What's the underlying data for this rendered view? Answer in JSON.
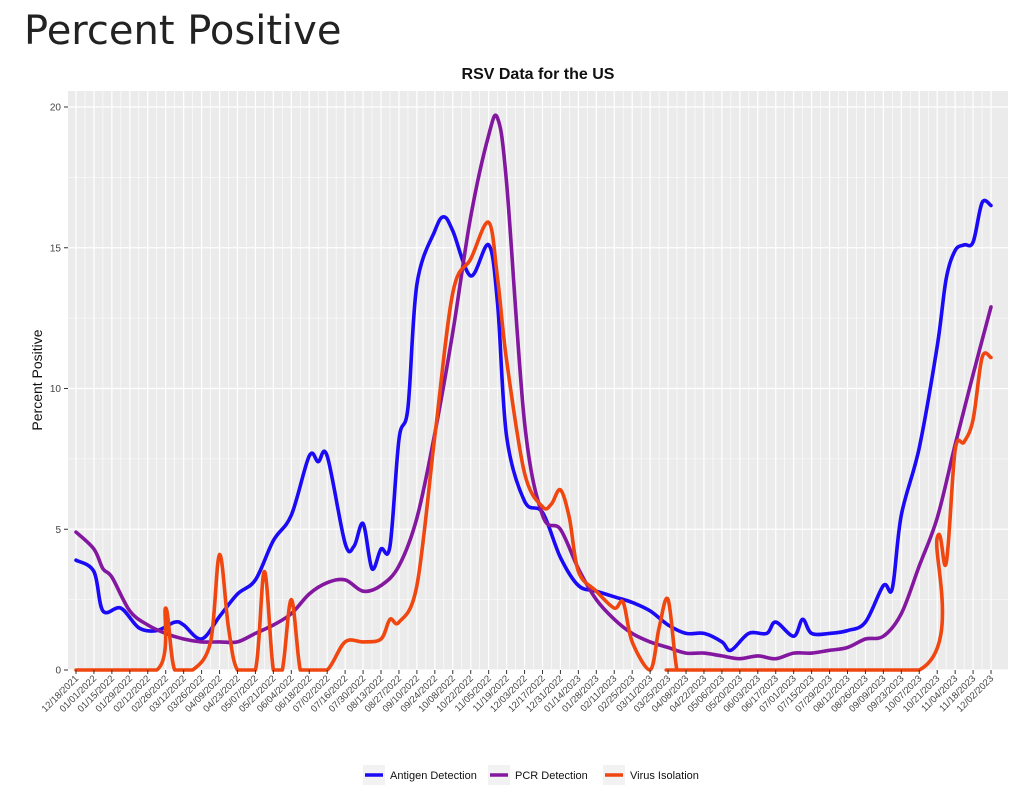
{
  "page": {
    "heading": "Percent Positive"
  },
  "chart_data": {
    "type": "line",
    "title": "RSV Data for the US",
    "xlabel": "",
    "ylabel": "Percent Positive",
    "ylim": [
      0,
      20
    ],
    "yticks": [
      0,
      5,
      10,
      15,
      20
    ],
    "x_start": "12/18/2021",
    "x_end": "12/09/2023",
    "x_tick_labels": [
      "12/18/2021",
      "01/01/2022",
      "01/15/2022",
      "01/29/2022",
      "02/12/2022",
      "02/26/2022",
      "03/12/2022",
      "03/26/2022",
      "04/09/2022",
      "04/23/2022",
      "05/07/2022",
      "05/21/2022",
      "06/04/2022",
      "06/18/2022",
      "07/02/2022",
      "07/16/2022",
      "07/30/2022",
      "08/13/2022",
      "08/27/2022",
      "09/10/2022",
      "09/24/2022",
      "10/08/2022",
      "10/22/2022",
      "11/05/2022",
      "11/19/2022",
      "12/03/2022",
      "12/17/2022",
      "12/31/2022",
      "01/14/2023",
      "01/28/2023",
      "02/11/2023",
      "02/25/2023",
      "03/11/2023",
      "03/25/2023",
      "04/08/2023",
      "04/22/2023",
      "05/06/2023",
      "05/20/2023",
      "06/03/2023",
      "06/17/2023",
      "07/01/2023",
      "07/15/2023",
      "07/29/2023",
      "08/12/2023",
      "08/26/2023",
      "09/09/2023",
      "09/23/2023",
      "10/07/2023",
      "10/21/2023",
      "11/04/2023",
      "11/18/2023",
      "12/02/2023"
    ],
    "grid": true,
    "legend_position": "bottom",
    "series": [
      {
        "name": "Antigen Detection",
        "color": "#1a0af5",
        "x": [
          "12/18/2021",
          "01/01/2022",
          "01/08/2022",
          "01/22/2022",
          "02/05/2022",
          "02/19/2022",
          "03/05/2022",
          "03/12/2022",
          "03/26/2022",
          "04/09/2022",
          "04/23/2022",
          "05/07/2022",
          "05/21/2022",
          "06/04/2022",
          "06/18/2022",
          "06/25/2022",
          "07/02/2022",
          "07/16/2022",
          "07/23/2022",
          "07/30/2022",
          "08/06/2022",
          "08/13/2022",
          "08/20/2022",
          "08/27/2022",
          "09/03/2022",
          "09/10/2022",
          "09/24/2022",
          "10/01/2022",
          "10/08/2022",
          "10/22/2022",
          "11/05/2022",
          "11/12/2022",
          "11/19/2022",
          "12/03/2022",
          "12/17/2022",
          "12/31/2022",
          "01/14/2023",
          "01/28/2023",
          "02/11/2023",
          "02/25/2023",
          "03/11/2023",
          "03/25/2023",
          "04/08/2023",
          "04/22/2023",
          "05/06/2023",
          "05/13/2023",
          "05/27/2023",
          "06/10/2023",
          "06/17/2023",
          "07/01/2023",
          "07/08/2023",
          "07/15/2023",
          "07/29/2023",
          "08/12/2023",
          "08/26/2023",
          "09/09/2023",
          "09/16/2023",
          "09/23/2023",
          "10/07/2023",
          "10/21/2023",
          "10/28/2023",
          "11/04/2023",
          "11/11/2023",
          "11/18/2023",
          "11/25/2023",
          "12/02/2023"
        ],
        "y": [
          3.9,
          3.5,
          2.1,
          2.2,
          1.5,
          1.4,
          1.7,
          1.6,
          1.1,
          1.9,
          2.7,
          3.2,
          4.6,
          5.5,
          7.6,
          7.4,
          7.6,
          4.5,
          4.4,
          5.2,
          3.6,
          4.3,
          4.4,
          8.2,
          9.3,
          13.7,
          15.6,
          16.1,
          15.6,
          14.0,
          15.1,
          13.0,
          8.3,
          6.0,
          5.6,
          4.0,
          3.0,
          2.8,
          2.6,
          2.4,
          2.1,
          1.6,
          1.3,
          1.3,
          1.0,
          0.7,
          1.3,
          1.3,
          1.7,
          1.2,
          1.8,
          1.3,
          1.3,
          1.4,
          1.7,
          3.0,
          2.9,
          5.5,
          7.9,
          11.5,
          13.9,
          14.9,
          15.1,
          15.2,
          16.6,
          16.5
        ]
      },
      {
        "name": "PCR Detection",
        "color": "#84179f",
        "x": [
          "12/18/2021",
          "01/01/2022",
          "01/08/2022",
          "01/15/2022",
          "01/29/2022",
          "02/12/2022",
          "02/26/2022",
          "03/12/2022",
          "03/26/2022",
          "04/09/2022",
          "04/23/2022",
          "05/07/2022",
          "05/21/2022",
          "06/04/2022",
          "06/18/2022",
          "07/02/2022",
          "07/16/2022",
          "07/30/2022",
          "08/13/2022",
          "08/27/2022",
          "09/10/2022",
          "09/24/2022",
          "10/08/2022",
          "10/22/2022",
          "11/05/2022",
          "11/12/2022",
          "11/19/2022",
          "12/03/2022",
          "12/17/2022",
          "12/31/2022",
          "01/14/2023",
          "01/28/2023",
          "02/11/2023",
          "02/25/2023",
          "03/11/2023",
          "03/25/2023",
          "04/08/2023",
          "04/22/2023",
          "05/06/2023",
          "05/20/2023",
          "06/03/2023",
          "06/17/2023",
          "07/01/2023",
          "07/15/2023",
          "07/29/2023",
          "08/12/2023",
          "08/26/2023",
          "09/09/2023",
          "09/23/2023",
          "10/07/2023",
          "10/21/2023",
          "11/04/2023",
          "11/18/2023",
          "12/02/2023"
        ],
        "y": [
          4.9,
          4.3,
          3.6,
          3.3,
          2.1,
          1.6,
          1.3,
          1.1,
          1.0,
          1.0,
          1.0,
          1.3,
          1.6,
          2.0,
          2.7,
          3.1,
          3.2,
          2.8,
          3.0,
          3.7,
          5.4,
          8.4,
          12.0,
          16.1,
          19.0,
          19.6,
          17.3,
          8.8,
          5.5,
          5.0,
          3.6,
          2.5,
          1.8,
          1.3,
          1.0,
          0.8,
          0.6,
          0.6,
          0.5,
          0.4,
          0.5,
          0.4,
          0.6,
          0.6,
          0.7,
          0.8,
          1.1,
          1.2,
          2.0,
          3.7,
          5.4,
          8.0,
          10.5,
          12.9
        ]
      },
      {
        "name": "Virus Isolation",
        "color": "#f0460f",
        "x": [
          "12/18/2021",
          "02/19/2022",
          "02/26/2022",
          "03/05/2022",
          "03/19/2022",
          "04/02/2022",
          "04/09/2022",
          "04/16/2022",
          "04/23/2022",
          "05/07/2022",
          "05/14/2022",
          "05/21/2022",
          "05/28/2022",
          "06/04/2022",
          "06/11/2022",
          "06/18/2022",
          "07/02/2022",
          "07/16/2022",
          "07/30/2022",
          "08/13/2022",
          "08/20/2022",
          "08/27/2022",
          "09/10/2022",
          "09/24/2022",
          "10/08/2022",
          "10/22/2022",
          "11/05/2022",
          "11/12/2022",
          "11/19/2022",
          "12/03/2022",
          "12/17/2022",
          "12/24/2022",
          "12/31/2022",
          "01/07/2023",
          "01/14/2023",
          "01/28/2023",
          "02/11/2023",
          "02/18/2023",
          "02/25/2023",
          "03/11/2023",
          "03/18/2023",
          "03/25/2023",
          "04/01/2023",
          "04/08/2023",
          "10/07/2023",
          "10/21/2023",
          "10/28/2023",
          "11/04/2023",
          "11/11/2023",
          "11/18/2023",
          "11/25/2023",
          "12/02/2023"
        ],
        "y": [
          0,
          0,
          2.2,
          0,
          0,
          1.0,
          4.1,
          1.5,
          0,
          0,
          3.5,
          0,
          0,
          2.5,
          0,
          0,
          0,
          1.0,
          1.0,
          1.1,
          1.8,
          1.7,
          3.0,
          8.3,
          13.4,
          14.6,
          15.9,
          13.9,
          11.0,
          7.0,
          5.8,
          5.9,
          6.4,
          5.4,
          3.5,
          2.8,
          2.2,
          2.4,
          1.0,
          0,
          1.5,
          2.5,
          0,
          0,
          0,
          4.7,
          3.8,
          7.8,
          8.1,
          8.9,
          11.1,
          11.1
        ]
      }
    ]
  }
}
